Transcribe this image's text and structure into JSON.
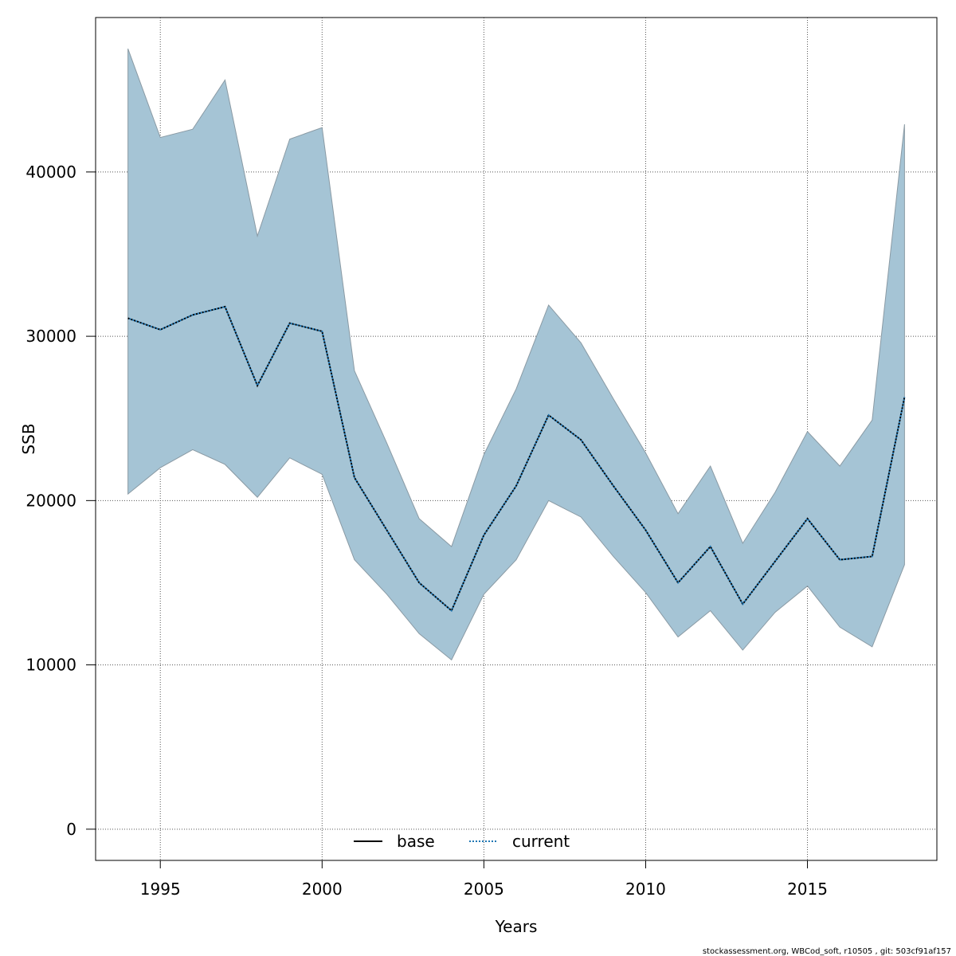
{
  "chart_data": {
    "type": "area",
    "xlabel": "Years",
    "ylabel": "SSB",
    "xlim": [
      1993,
      2019
    ],
    "ylim": [
      -1900,
      49400
    ],
    "x_ticks": [
      1995,
      2000,
      2005,
      2010,
      2015
    ],
    "y_ticks": [
      0,
      10000,
      20000,
      30000,
      40000
    ],
    "grid": true,
    "legend_position": "bottom-center",
    "band_color": "#a5c4d5",
    "years": [
      1994,
      1995,
      1996,
      1997,
      1998,
      1999,
      2000,
      2001,
      2002,
      2003,
      2004,
      2005,
      2006,
      2007,
      2008,
      2009,
      2010,
      2011,
      2012,
      2013,
      2014,
      2015,
      2016,
      2017,
      2018
    ],
    "series": [
      {
        "name": "current",
        "style": "dotted",
        "color": "#1f77b4",
        "values": [
          31100,
          30400,
          31300,
          31800,
          27000,
          30800,
          30300,
          21400,
          18200,
          15000,
          13300,
          17900,
          20900,
          25200,
          23700,
          20900,
          18200,
          15000,
          17200,
          13700,
          16300,
          18900,
          16400,
          16600,
          26300
        ],
        "lower": [
          20400,
          22000,
          23100,
          22200,
          20200,
          22600,
          21600,
          16400,
          14300,
          11900,
          10300,
          14300,
          16400,
          20000,
          19000,
          16600,
          14400,
          11700,
          13300,
          10900,
          13200,
          14800,
          12300,
          11100,
          16100
        ],
        "upper": [
          47500,
          42100,
          42600,
          45600,
          36100,
          42000,
          42700,
          27900,
          23500,
          18900,
          17200,
          22800,
          26800,
          31900,
          29600,
          26200,
          22900,
          19200,
          22100,
          17400,
          20500,
          24200,
          22100,
          24900,
          42900
        ]
      },
      {
        "name": "base",
        "style": "solid",
        "color": "#000000",
        "values": [
          31100,
          30400,
          31300,
          31800,
          27000,
          30800,
          30300,
          21400,
          18200,
          15000,
          13300,
          17900,
          20900,
          25200,
          23700,
          20900,
          18200,
          15000,
          17200,
          13700,
          16300,
          18900,
          16400,
          16600,
          26300
        ]
      }
    ]
  },
  "legend": {
    "base": "base",
    "current": "current"
  },
  "footer": "stockassessment.org, WBCod_soft, r10505 , git: 503cf91af157"
}
